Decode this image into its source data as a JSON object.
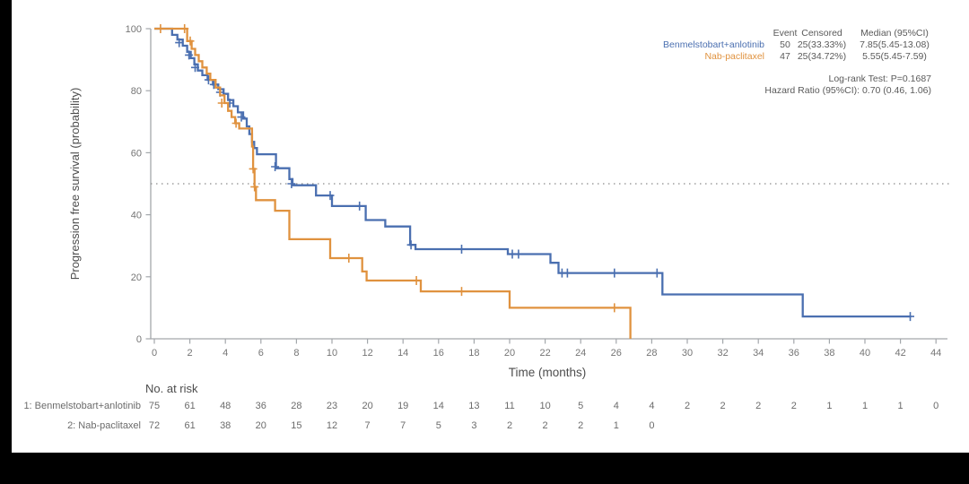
{
  "colors": {
    "blue": "#4a6fb0",
    "orange": "#e0923f",
    "axis": "#a3a7ab",
    "tick_text": "#757575",
    "label_text": "#4d4d4d",
    "stat_text": "#5a5a5a",
    "risk_text": "#6b6b6b",
    "ref_line": "#8c8c8c"
  },
  "chart_data": {
    "type": "line",
    "subtype": "kaplan-meier-step",
    "title": "",
    "xlabel": "Time (months)",
    "ylabel": "Progression free survival (probability)",
    "xlim": [
      0,
      44
    ],
    "ylim": [
      0,
      100
    ],
    "xticks": [
      0,
      2,
      4,
      6,
      8,
      10,
      12,
      14,
      16,
      18,
      20,
      22,
      24,
      26,
      28,
      30,
      32,
      34,
      36,
      38,
      40,
      42,
      44
    ],
    "yticks": [
      0,
      20,
      40,
      60,
      80,
      100
    ],
    "grid": false,
    "reference_line_y": 50,
    "legend_position": "top-right",
    "series": [
      {
        "name": "Benmelstobart+anlotinib",
        "color_key": "blue",
        "start": [
          0,
          100
        ],
        "end_t": 42.6,
        "steps": [
          [
            1.0,
            98
          ],
          [
            1.3,
            96.5
          ],
          [
            1.6,
            94.5
          ],
          [
            1.85,
            92.5
          ],
          [
            2.05,
            90.5
          ],
          [
            2.25,
            88.5
          ],
          [
            2.45,
            86.5
          ],
          [
            2.7,
            85
          ],
          [
            3.0,
            83.5
          ],
          [
            3.3,
            82
          ],
          [
            3.6,
            80.5
          ],
          [
            3.9,
            79
          ],
          [
            4.15,
            77
          ],
          [
            4.45,
            75
          ],
          [
            4.7,
            73
          ],
          [
            5.0,
            71
          ],
          [
            5.2,
            68.5
          ],
          [
            5.35,
            66
          ],
          [
            5.5,
            63.5
          ],
          [
            5.62,
            61.5
          ],
          [
            5.78,
            59.5
          ],
          [
            6.85,
            55
          ],
          [
            7.6,
            51.5
          ],
          [
            7.78,
            49.5
          ],
          [
            9.1,
            46.2
          ],
          [
            10.0,
            42.8
          ],
          [
            11.9,
            38.3
          ],
          [
            13.0,
            36.2
          ],
          [
            14.4,
            30.3
          ],
          [
            14.7,
            28.9
          ],
          [
            19.9,
            27.3
          ],
          [
            22.3,
            24.5
          ],
          [
            22.75,
            21.2
          ],
          [
            28.6,
            14.3
          ],
          [
            36.5,
            7.2
          ]
        ],
        "censors": [
          [
            1.4,
            95.5
          ],
          [
            1.95,
            91.5
          ],
          [
            2.3,
            87.5
          ],
          [
            3.05,
            83.5
          ],
          [
            3.35,
            82
          ],
          [
            3.7,
            79.5
          ],
          [
            4.25,
            76
          ],
          [
            4.9,
            71.5
          ],
          [
            6.8,
            55.5
          ],
          [
            7.72,
            50
          ],
          [
            9.9,
            46.2
          ],
          [
            11.55,
            42.8
          ],
          [
            14.45,
            30.3
          ],
          [
            17.3,
            28.9
          ],
          [
            20.15,
            27.3
          ],
          [
            20.5,
            27.3
          ],
          [
            22.95,
            21.2
          ],
          [
            23.25,
            21.2
          ],
          [
            25.9,
            21.2
          ],
          [
            28.3,
            21.2
          ],
          [
            42.55,
            7.2
          ]
        ]
      },
      {
        "name": "Nab-paclitaxel",
        "color_key": "orange",
        "start": [
          0,
          100
        ],
        "end_t": 26.8,
        "steps": [
          [
            1.85,
            96
          ],
          [
            2.1,
            93.5
          ],
          [
            2.3,
            91.5
          ],
          [
            2.5,
            89.5
          ],
          [
            2.7,
            87.5
          ],
          [
            2.95,
            85.5
          ],
          [
            3.15,
            83.5
          ],
          [
            3.45,
            81
          ],
          [
            3.7,
            78.5
          ],
          [
            3.95,
            76
          ],
          [
            4.15,
            73.5
          ],
          [
            4.35,
            71.5
          ],
          [
            4.55,
            69.5
          ],
          [
            4.78,
            67.8
          ],
          [
            5.5,
            62
          ],
          [
            5.56,
            54.8
          ],
          [
            5.64,
            49
          ],
          [
            5.72,
            44.7
          ],
          [
            6.8,
            41.3
          ],
          [
            7.6,
            32.1
          ],
          [
            9.9,
            26
          ],
          [
            11.7,
            21.7
          ],
          [
            11.95,
            18.8
          ],
          [
            15.0,
            15.3
          ],
          [
            20.0,
            10
          ],
          [
            26.8,
            0
          ]
        ],
        "censors": [
          [
            0.35,
            100
          ],
          [
            1.7,
            100
          ],
          [
            2.02,
            96
          ],
          [
            3.8,
            76
          ],
          [
            4.6,
            69.5
          ],
          [
            5.56,
            54.8
          ],
          [
            5.64,
            49
          ],
          [
            10.95,
            26
          ],
          [
            14.75,
            18.8
          ],
          [
            17.3,
            15.3
          ],
          [
            25.9,
            10
          ]
        ]
      }
    ],
    "legend_stats": {
      "columns": [
        "Event",
        "Censored",
        "Median (95%CI)"
      ],
      "rows": [
        {
          "label": "Benmelstobart+anlotinib",
          "color_key": "blue",
          "event": "50",
          "censored": "25(33.33%)",
          "median": "7.85(5.45-13.08)"
        },
        {
          "label": "Nab-paclitaxel",
          "color_key": "orange",
          "event": "47",
          "censored": "25(34.72%)",
          "median": "5.55(5.45-7.59)"
        }
      ],
      "footnotes": [
        "Log-rank Test: P=0.1687",
        "Hazard Ratio (95%CI): 0.70 (0.46, 1.06)"
      ]
    },
    "risk_table": {
      "title": "No. at risk",
      "rows": [
        {
          "label": "1: Benmelstobart+anlotinib",
          "values": [
            75,
            61,
            48,
            36,
            28,
            23,
            20,
            19,
            14,
            13,
            11,
            10,
            5,
            4,
            4,
            2,
            2,
            2,
            2,
            1,
            1,
            1,
            0
          ]
        },
        {
          "label": "2: Nab-paclitaxel",
          "values": [
            72,
            61,
            38,
            20,
            15,
            12,
            7,
            7,
            5,
            3,
            2,
            2,
            2,
            1,
            0
          ]
        }
      ]
    }
  }
}
